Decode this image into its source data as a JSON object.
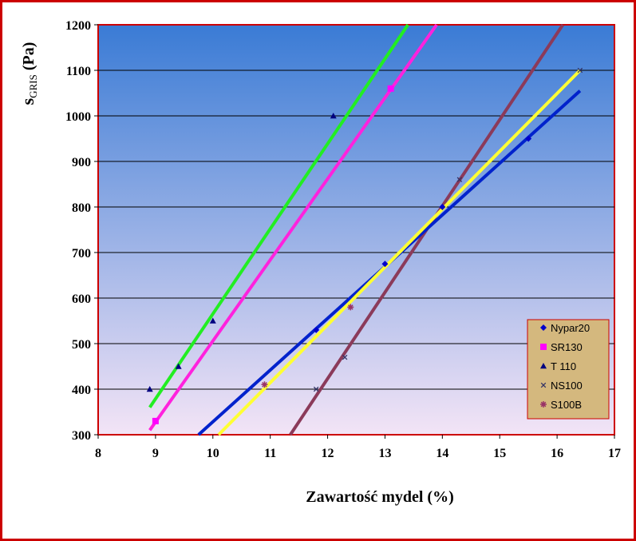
{
  "chart_data": {
    "type": "scatter",
    "title": "",
    "xlabel": "Zawartość mydel (%)",
    "ylabel_main": "s",
    "ylabel_sub": "GRIS",
    "ylabel_unit": " (Pa)",
    "xlim": [
      8,
      17
    ],
    "ylim": [
      300,
      1200
    ],
    "x_ticks": [
      "8",
      "9",
      "10",
      "11",
      "12",
      "13",
      "14",
      "15",
      "16",
      "17"
    ],
    "y_ticks": [
      "300",
      "400",
      "500",
      "600",
      "700",
      "800",
      "900",
      "1000",
      "1100",
      "1200"
    ],
    "grid": "horizontal",
    "legend_position": "right",
    "background_gradient": [
      "#3a7bd5",
      "#f3e4f6"
    ],
    "series": [
      {
        "name": "Nypar20",
        "color": "#0000cc",
        "marker": "diamond",
        "points": [
          [
            11.8,
            530
          ],
          [
            13.0,
            675
          ],
          [
            14.0,
            800
          ],
          [
            15.5,
            950
          ]
        ],
        "trend": [
          [
            9.75,
            300
          ],
          [
            16.4,
            1055
          ]
        ]
      },
      {
        "name": "SR130",
        "color": "#ff00ff",
        "marker": "square",
        "points": [
          [
            9.0,
            330
          ],
          [
            13.1,
            1060
          ]
        ],
        "trend": [
          [
            8.9,
            310
          ],
          [
            13.9,
            1200
          ]
        ]
      },
      {
        "name": "T 110",
        "color": "#000080",
        "marker": "triangle",
        "points": [
          [
            8.9,
            400
          ],
          [
            9.4,
            450
          ],
          [
            10.0,
            550
          ],
          [
            12.1,
            1000
          ]
        ],
        "trend": [
          [
            8.9,
            360
          ],
          [
            13.4,
            1200
          ]
        ]
      },
      {
        "name": "NS100",
        "color": "#333366",
        "marker": "x",
        "points": [
          [
            11.8,
            400
          ],
          [
            12.3,
            470
          ],
          [
            14.3,
            860
          ],
          [
            16.4,
            1100
          ]
        ],
        "trend": [
          [
            10.1,
            300
          ],
          [
            16.4,
            1100
          ]
        ]
      },
      {
        "name": "S100B",
        "color": "#993366",
        "marker": "star",
        "points": [
          [
            10.9,
            410
          ],
          [
            12.4,
            580
          ]
        ],
        "trend": [
          [
            11.35,
            300
          ],
          [
            16.1,
            1200
          ]
        ]
      }
    ],
    "trend_colors": [
      "#0022cc",
      "#ff22dd",
      "#22ee22",
      "#ffff33",
      "#8b3a5a"
    ]
  }
}
